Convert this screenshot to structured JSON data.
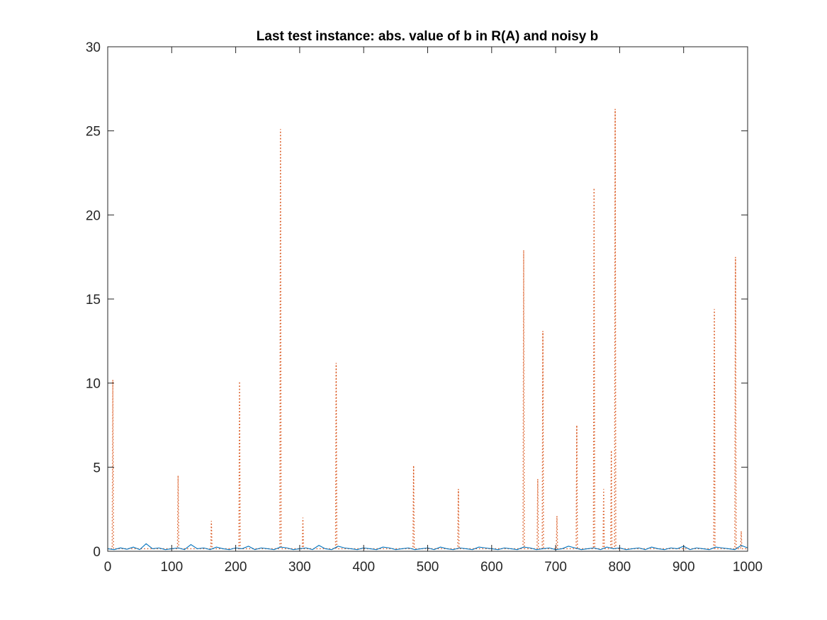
{
  "chart_data": {
    "type": "line",
    "title": "Last test instance: abs. value of b in R(A) and noisy b",
    "xlabel": "",
    "ylabel": "",
    "xlim": [
      0,
      1000
    ],
    "ylim": [
      0,
      30
    ],
    "xticks": [
      "0",
      "100",
      "200",
      "300",
      "400",
      "500",
      "600",
      "700",
      "800",
      "900",
      "1000"
    ],
    "yticks": [
      "0",
      "5",
      "10",
      "15",
      "20",
      "25",
      "30"
    ],
    "grid": false,
    "legend": "none",
    "series": [
      {
        "color": "#0072BD",
        "line_style": "solid",
        "description_points": "approx. |b| values, mostly between 0 and 0.4",
        "x": [
          0,
          10,
          20,
          30,
          40,
          50,
          60,
          70,
          80,
          90,
          100,
          110,
          120,
          130,
          140,
          150,
          160,
          170,
          180,
          190,
          200,
          210,
          220,
          230,
          240,
          250,
          260,
          270,
          280,
          290,
          300,
          310,
          320,
          330,
          340,
          350,
          360,
          370,
          380,
          390,
          400,
          410,
          420,
          430,
          440,
          450,
          460,
          470,
          480,
          490,
          500,
          510,
          520,
          530,
          540,
          550,
          560,
          570,
          580,
          590,
          600,
          610,
          620,
          630,
          640,
          650,
          660,
          670,
          680,
          690,
          700,
          710,
          720,
          730,
          740,
          750,
          760,
          770,
          780,
          790,
          800,
          810,
          820,
          830,
          840,
          850,
          860,
          870,
          880,
          890,
          900,
          910,
          920,
          930,
          940,
          950,
          960,
          970,
          980,
          990,
          1000
        ],
        "y": [
          0.15,
          0.1,
          0.2,
          0.12,
          0.25,
          0.1,
          0.45,
          0.15,
          0.2,
          0.1,
          0.15,
          0.2,
          0.1,
          0.4,
          0.15,
          0.2,
          0.1,
          0.25,
          0.15,
          0.1,
          0.2,
          0.15,
          0.3,
          0.1,
          0.2,
          0.15,
          0.1,
          0.25,
          0.2,
          0.1,
          0.15,
          0.2,
          0.1,
          0.35,
          0.15,
          0.1,
          0.3,
          0.2,
          0.15,
          0.1,
          0.2,
          0.15,
          0.1,
          0.25,
          0.2,
          0.1,
          0.15,
          0.2,
          0.1,
          0.15,
          0.2,
          0.1,
          0.25,
          0.15,
          0.1,
          0.2,
          0.15,
          0.1,
          0.25,
          0.2,
          0.15,
          0.1,
          0.2,
          0.15,
          0.1,
          0.25,
          0.2,
          0.1,
          0.15,
          0.2,
          0.1,
          0.15,
          0.3,
          0.2,
          0.1,
          0.15,
          0.2,
          0.1,
          0.25,
          0.15,
          0.2,
          0.1,
          0.15,
          0.2,
          0.1,
          0.25,
          0.15,
          0.1,
          0.2,
          0.15,
          0.3,
          0.1,
          0.2,
          0.15,
          0.1,
          0.25,
          0.2,
          0.15,
          0.1,
          0.35,
          0.2
        ]
      },
      {
        "color": "#D95319",
        "line_style": "dotted",
        "baseline": 0.15,
        "spikes": [
          {
            "x": 8,
            "y": 10.2
          },
          {
            "x": 110,
            "y": 4.5
          },
          {
            "x": 162,
            "y": 1.8
          },
          {
            "x": 206,
            "y": 10.1
          },
          {
            "x": 270,
            "y": 25.1
          },
          {
            "x": 305,
            "y": 2.0
          },
          {
            "x": 357,
            "y": 11.2
          },
          {
            "x": 478,
            "y": 5.1
          },
          {
            "x": 548,
            "y": 3.7
          },
          {
            "x": 650,
            "y": 17.9
          },
          {
            "x": 672,
            "y": 4.3
          },
          {
            "x": 680,
            "y": 13.1
          },
          {
            "x": 702,
            "y": 2.1
          },
          {
            "x": 733,
            "y": 7.5
          },
          {
            "x": 760,
            "y": 21.6
          },
          {
            "x": 775,
            "y": 3.7
          },
          {
            "x": 787,
            "y": 6.0
          },
          {
            "x": 793,
            "y": 26.3
          },
          {
            "x": 948,
            "y": 14.4
          },
          {
            "x": 981,
            "y": 17.5
          },
          {
            "x": 990,
            "y": 1.2
          }
        ]
      }
    ]
  }
}
